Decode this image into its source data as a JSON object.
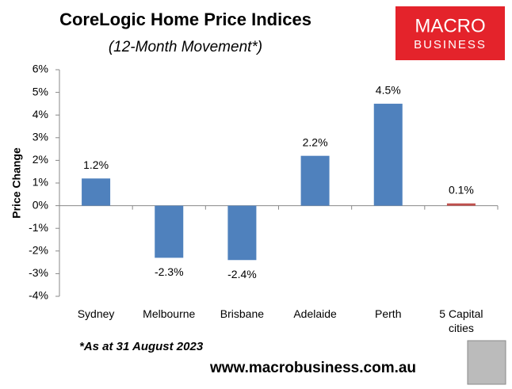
{
  "chart_data": {
    "type": "bar",
    "title": "CoreLogic Home Price Indices",
    "subtitle": "(12-Month Movement*)",
    "y_label": "Price Change",
    "categories": [
      "Sydney",
      "Melbourne",
      "Brisbane",
      "Adelaide",
      "Perth",
      "5 Capital cities"
    ],
    "values": [
      1.2,
      -2.3,
      -2.4,
      2.2,
      4.5,
      0.1
    ],
    "value_labels": [
      "1.2%",
      "-2.3%",
      "-2.4%",
      "2.2%",
      "4.5%",
      "0.1%"
    ],
    "colors": [
      "#4f81bd",
      "#4f81bd",
      "#4f81bd",
      "#4f81bd",
      "#4f81bd",
      "#c0504d"
    ],
    "ylim": [
      -4,
      6
    ],
    "yticks": [
      {
        "value": -4,
        "label": "-4%"
      },
      {
        "value": -3,
        "label": "-3%"
      },
      {
        "value": -2,
        "label": "-2%"
      },
      {
        "value": -1,
        "label": "-1%"
      },
      {
        "value": 0,
        "label": "0%"
      },
      {
        "value": 1,
        "label": "1%"
      },
      {
        "value": 2,
        "label": "2%"
      },
      {
        "value": 3,
        "label": "3%"
      },
      {
        "value": 4,
        "label": "4%"
      },
      {
        "value": 5,
        "label": "5%"
      },
      {
        "value": 6,
        "label": "6%"
      }
    ],
    "grid": false,
    "footnote": "*As at 31 August 2023"
  },
  "logo": {
    "line1": "MACRO",
    "line2": "BUSINESS"
  },
  "website": "www.macrobusiness.com.au"
}
